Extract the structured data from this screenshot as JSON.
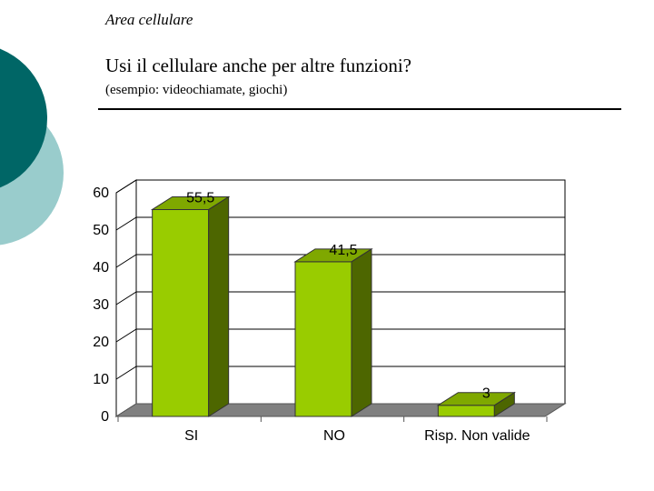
{
  "header": {
    "section": "Area cellulare"
  },
  "slide": {
    "title": "Usi il cellulare anche per altre funzioni?",
    "subtitle": "(esempio: videochiamate, giochi)"
  },
  "colors": {
    "circle_dark": "#006666",
    "circle_light": "#99CCCC",
    "bar_front": "#99CC00",
    "bar_side": "#4D6600",
    "bar_top": "#7FA800",
    "floor": "#808080",
    "gridline": "#000000"
  },
  "chart_data": {
    "type": "bar",
    "categories": [
      "SI",
      "NO",
      "Risp. Non valide"
    ],
    "values": [
      55.5,
      41.5,
      3
    ],
    "value_labels": [
      "55,5",
      "41,5",
      "3"
    ],
    "y_ticks": [
      0,
      10,
      20,
      30,
      40,
      50,
      60
    ],
    "ylim": [
      0,
      60
    ],
    "grid": true,
    "legend": false,
    "three_d": true
  }
}
